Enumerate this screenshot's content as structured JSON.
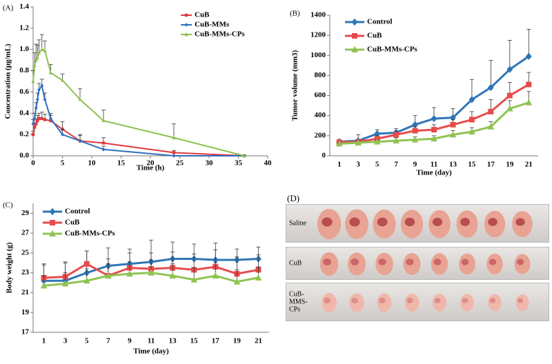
{
  "chart_data": [
    {
      "type": "line",
      "panel_label": "(A)",
      "xlabel": "Time (h)",
      "ylabel": "Concentration (μg/mL)",
      "x": [
        0,
        0.25,
        0.5,
        0.75,
        1,
        1.5,
        2,
        3,
        5,
        8,
        12,
        24,
        36
      ],
      "xlim": [
        0,
        40
      ],
      "xticks": [
        0,
        5,
        10,
        15,
        20,
        25,
        30,
        35,
        40
      ],
      "ylim": [
        0,
        1.4
      ],
      "yticks": [
        {
          "value": 0,
          "label": "0.0"
        },
        0.2,
        0.4,
        0.6,
        0.8,
        {
          "value": 1,
          "label": "1.0"
        },
        1.2,
        1.4
      ],
      "legend": "upper right",
      "series": [
        {
          "name": "CuB",
          "color": "#e0393e",
          "marker": "square",
          "values": [
            0.2,
            0.27,
            0.3,
            0.33,
            0.35,
            0.35,
            0.34,
            0.33,
            0.25,
            0.14,
            0.12,
            0.03,
            0
          ],
          "errors": [
            0.03,
            0.04,
            0.05,
            0.05,
            0.05,
            0.06,
            0.05,
            0.05,
            0.07,
            0.06,
            0.05,
            0.02,
            0
          ]
        },
        {
          "name": "CuB-MMs",
          "color": "#2f6fbf",
          "marker": "diamond",
          "values": [
            0.3,
            0.35,
            0.45,
            0.53,
            0.62,
            0.66,
            0.53,
            0.35,
            0.2,
            0.14,
            0.06,
            0,
            0
          ],
          "errors": [
            0.04,
            0.05,
            0.05,
            0.06,
            0.06,
            0.06,
            0.06,
            0.05,
            0.05,
            0.05,
            0.03,
            0,
            0
          ]
        },
        {
          "name": "CuB-MMs-CPs",
          "color": "#8dc04e",
          "marker": "triangle",
          "values": [
            0.7,
            0.85,
            0.9,
            0.92,
            0.97,
            1,
            0.99,
            0.78,
            0.71,
            0.53,
            0.33,
            0.17,
            0
          ],
          "errors": [
            0.1,
            0.12,
            0.15,
            0.12,
            0.12,
            0.14,
            0.09,
            0.08,
            0.06,
            0.1,
            0.1,
            0.13,
            0
          ]
        }
      ]
    },
    {
      "type": "line",
      "panel_label": "(B)",
      "xlabel": "Time (day)",
      "ylabel": "Tumor volume (mm3)",
      "categories": [
        "1",
        "3",
        "5",
        "7",
        "9",
        "11",
        "13",
        "15",
        "17",
        "19",
        "21"
      ],
      "ylim": [
        0,
        1400
      ],
      "yticks": [
        0,
        200,
        400,
        600,
        800,
        1000,
        1200,
        1400
      ],
      "legend": "upper left",
      "series": [
        {
          "name": "Control",
          "color": "#2e75b6",
          "marker": "diamond",
          "values": [
            140,
            150,
            220,
            230,
            310,
            370,
            380,
            560,
            680,
            860,
            990
          ],
          "errors": [
            20,
            60,
            40,
            40,
            90,
            110,
            90,
            200,
            270,
            290,
            270
          ]
        },
        {
          "name": "CuB",
          "color": "#e84a4a",
          "marker": "square",
          "values": [
            135,
            140,
            170,
            210,
            250,
            260,
            310,
            360,
            440,
            600,
            710
          ],
          "errors": [
            10,
            20,
            30,
            40,
            40,
            50,
            50,
            80,
            120,
            130,
            120
          ]
        },
        {
          "name": "CuB-MMs-CPs",
          "color": "#8fc351",
          "marker": "triangle",
          "values": [
            120,
            130,
            140,
            150,
            160,
            170,
            210,
            240,
            290,
            470,
            530
          ],
          "errors": [
            10,
            20,
            20,
            30,
            30,
            30,
            40,
            40,
            50,
            80,
            110
          ]
        }
      ]
    },
    {
      "type": "line",
      "panel_label": "(C)",
      "xlabel": "Time (day)",
      "ylabel": "Body weight (g)",
      "categories": [
        "1",
        "3",
        "5",
        "7",
        "9",
        "11",
        "13",
        "15",
        "17",
        "19",
        "21"
      ],
      "ylim": [
        17,
        30
      ],
      "yticks": [
        17,
        19,
        21,
        23,
        25,
        27,
        29
      ],
      "legend": "upper left",
      "series": [
        {
          "name": "Control",
          "color": "#2e75b6",
          "marker": "diamond",
          "values": [
            22.2,
            22.2,
            23,
            23.7,
            23.9,
            24.1,
            24.4,
            24.4,
            24.3,
            24.3,
            24.4
          ],
          "errors": [
            1.6,
            1.8,
            2.2,
            1.8,
            1.5,
            2.2,
            1.7,
            1.5,
            1.7,
            1.1,
            1.2
          ]
        },
        {
          "name": "CuB",
          "color": "#e84a4a",
          "marker": "square",
          "values": [
            22.5,
            22.6,
            23.9,
            22.7,
            23.5,
            23.4,
            23.5,
            23.3,
            23.6,
            22.9,
            23.3
          ],
          "errors": [
            1.4,
            1.5,
            1.3,
            1.7,
            1.5,
            1.6,
            1.6,
            1.6,
            1.7,
            1.7,
            1.5
          ]
        },
        {
          "name": "CuB-MMs-CPs",
          "color": "#8fc351",
          "marker": "triangle",
          "values": [
            21.7,
            21.9,
            22.2,
            22.7,
            22.9,
            23,
            22.7,
            22.3,
            22.7,
            22.1,
            22.5
          ],
          "errors": [
            1,
            1.1,
            1.2,
            1.2,
            1.2,
            1.3,
            1.2,
            1.2,
            1.3,
            1.2,
            1.1
          ]
        }
      ]
    }
  ],
  "photo": {
    "label": "(D)",
    "rows": [
      "Saline",
      "CuB",
      "CuB-MMS-CPs"
    ]
  }
}
